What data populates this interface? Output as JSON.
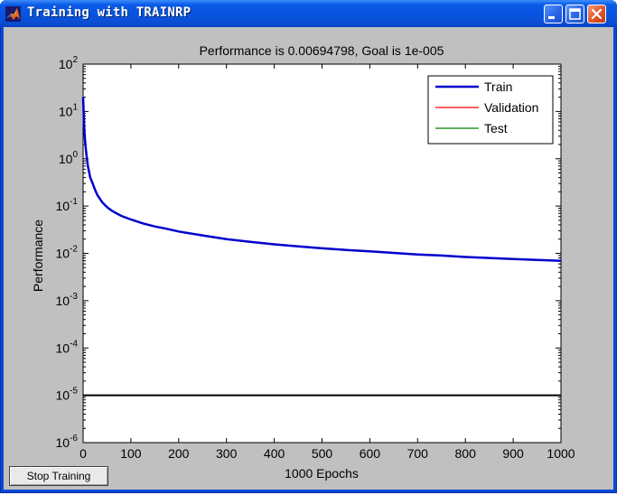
{
  "window": {
    "title": "Training with TRAINRP"
  },
  "controls": {
    "stop_label": "Stop Training"
  },
  "chart_data": {
    "type": "line",
    "title": "Performance is 0.00694798, Goal is 1e-005",
    "xlabel": "1000 Epochs",
    "ylabel": "Performance",
    "xlim": [
      0,
      1000
    ],
    "ylim": [
      1e-06,
      100
    ],
    "yscale": "log",
    "x_ticks": [
      "0",
      "100",
      "200",
      "300",
      "400",
      "500",
      "600",
      "700",
      "800",
      "900",
      "1000"
    ],
    "y_ticks": [
      {
        "base": "10",
        "exp": "2",
        "value": 100
      },
      {
        "base": "10",
        "exp": "1",
        "value": 10
      },
      {
        "base": "10",
        "exp": "0",
        "value": 1
      },
      {
        "base": "10",
        "exp": "-1",
        "value": 0.1
      },
      {
        "base": "10",
        "exp": "-2",
        "value": 0.01
      },
      {
        "base": "10",
        "exp": "-3",
        "value": 0.001
      },
      {
        "base": "10",
        "exp": "-4",
        "value": 0.0001
      },
      {
        "base": "10",
        "exp": "-5",
        "value": 1e-05
      },
      {
        "base": "10",
        "exp": "-6",
        "value": 1e-06
      }
    ],
    "legend_position": "top-right",
    "legend": [
      {
        "name": "Train",
        "color": "#0000cc"
      },
      {
        "name": "Validation",
        "color": "#ff0000"
      },
      {
        "name": "Test",
        "color": "#008000"
      }
    ],
    "goal": {
      "value": 1e-05,
      "color": "#000000"
    },
    "series": [
      {
        "name": "Train",
        "color": "#0000cc",
        "x": [
          0,
          2,
          4,
          6,
          8,
          10,
          15,
          20,
          25,
          30,
          40,
          50,
          60,
          70,
          80,
          100,
          125,
          150,
          175,
          200,
          250,
          300,
          350,
          400,
          450,
          500,
          550,
          600,
          650,
          700,
          750,
          800,
          850,
          900,
          950,
          1000
        ],
        "y": [
          20,
          5,
          2.5,
          1.5,
          1.0,
          0.7,
          0.4,
          0.3,
          0.22,
          0.17,
          0.12,
          0.095,
          0.08,
          0.07,
          0.062,
          0.052,
          0.043,
          0.037,
          0.033,
          0.029,
          0.024,
          0.02,
          0.0175,
          0.0155,
          0.014,
          0.0128,
          0.0118,
          0.011,
          0.0102,
          0.0095,
          0.009,
          0.0084,
          0.008,
          0.0076,
          0.0073,
          0.00695
        ]
      }
    ]
  }
}
